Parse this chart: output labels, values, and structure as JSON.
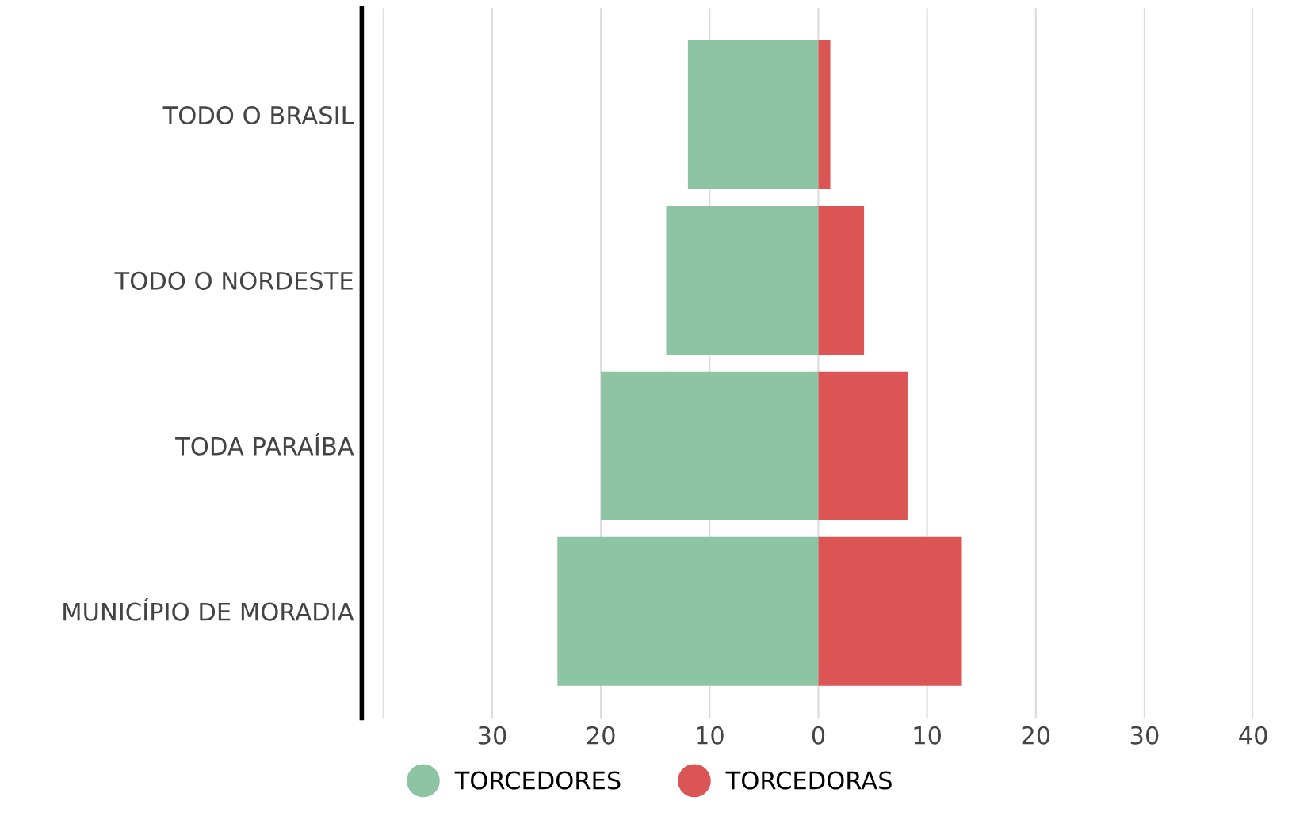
{
  "chart_data": {
    "type": "bar",
    "orientation": "horizontal",
    "stacked": true,
    "categories": [
      "TODO O BRASIL",
      "TODO O NORDESTE",
      "TODA PARAÍBA",
      "MUNICÍPIO DE MORADIA"
    ],
    "series": [
      {
        "name": "TORCEDORES",
        "color": "#8cc4a4",
        "values": [
          -12,
          -14,
          -20,
          -24
        ]
      },
      {
        "name": "TORCEDORAS",
        "color": "#dc5555",
        "values": [
          1.1,
          4.2,
          8.2,
          13.2
        ]
      }
    ],
    "xlim": [
      -42,
      40
    ],
    "xticks": [
      {
        "value": -40,
        "label": null
      },
      {
        "value": -30,
        "label": "30"
      },
      {
        "value": -20,
        "label": "20"
      },
      {
        "value": -10,
        "label": "10"
      },
      0,
      10,
      20,
      30,
      40
    ],
    "grid": "x",
    "legend": "bottom"
  }
}
